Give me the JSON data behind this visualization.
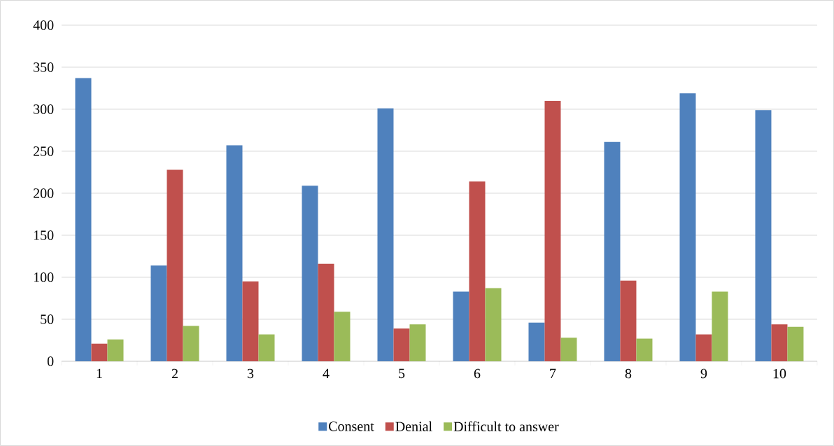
{
  "chart_data": {
    "type": "bar",
    "categories": [
      "1",
      "2",
      "3",
      "4",
      "5",
      "6",
      "7",
      "8",
      "9",
      "10"
    ],
    "series": [
      {
        "name": "Consent",
        "color": "#4f81bd",
        "values": [
          337,
          114,
          257,
          209,
          301,
          83,
          46,
          261,
          319,
          299
        ]
      },
      {
        "name": "Denial",
        "color": "#c0504d",
        "values": [
          21,
          228,
          95,
          116,
          39,
          214,
          310,
          96,
          32,
          44
        ]
      },
      {
        "name": "Difficult to answer",
        "color": "#9bbb59",
        "values": [
          26,
          42,
          32,
          59,
          44,
          87,
          28,
          27,
          83,
          41
        ]
      }
    ],
    "ylim": [
      0,
      400
    ],
    "yticks": [
      0,
      50,
      100,
      150,
      200,
      250,
      300,
      350,
      400
    ],
    "grid": "y",
    "legend": "bottom"
  }
}
